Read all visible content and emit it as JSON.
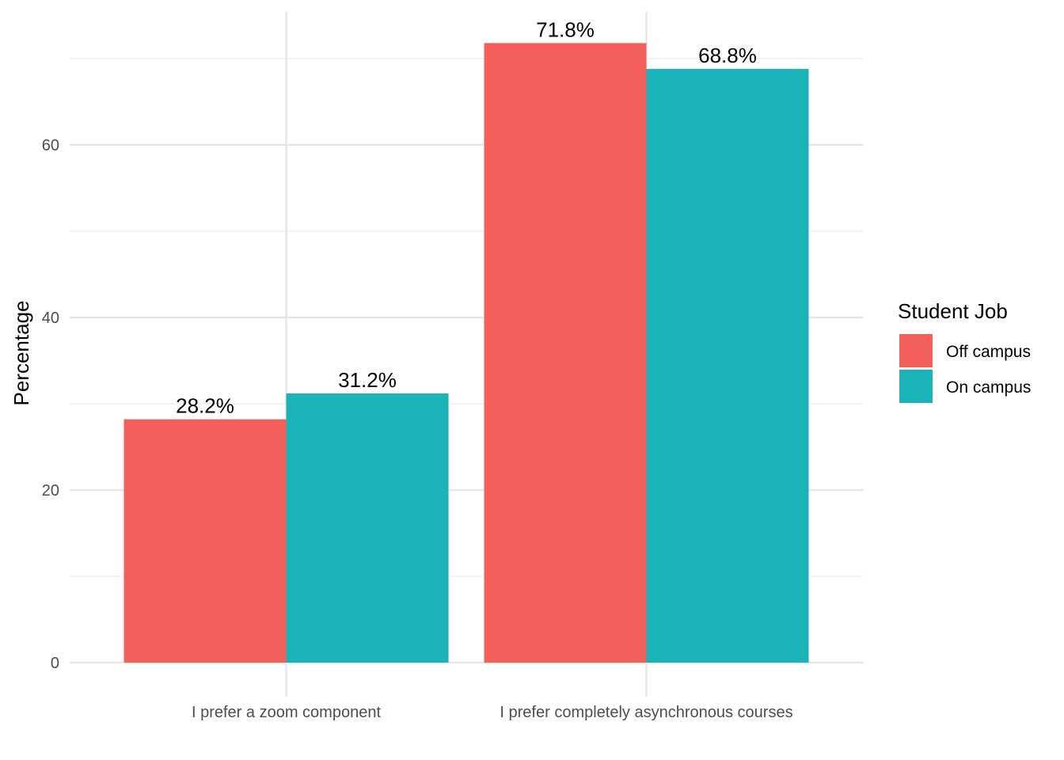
{
  "chart_data": {
    "type": "bar",
    "title": "",
    "xlabel": "",
    "ylabel": "Percentage",
    "ylim": [
      0,
      75
    ],
    "yticks": [
      0,
      20,
      40,
      60
    ],
    "grid": true,
    "categories": [
      "I prefer a zoom component",
      "I prefer completely asynchronous courses"
    ],
    "series": [
      {
        "name": "Off campus",
        "color": "#F35F5B",
        "values": [
          28.2,
          71.8
        ],
        "labels": [
          "28.2%",
          "71.8%"
        ]
      },
      {
        "name": "On campus",
        "color": "#1AB3B8",
        "values": [
          31.2,
          68.8
        ],
        "labels": [
          "31.2%",
          "68.8%"
        ]
      }
    ],
    "legend": {
      "title": "Student Job",
      "placement": "right"
    }
  }
}
